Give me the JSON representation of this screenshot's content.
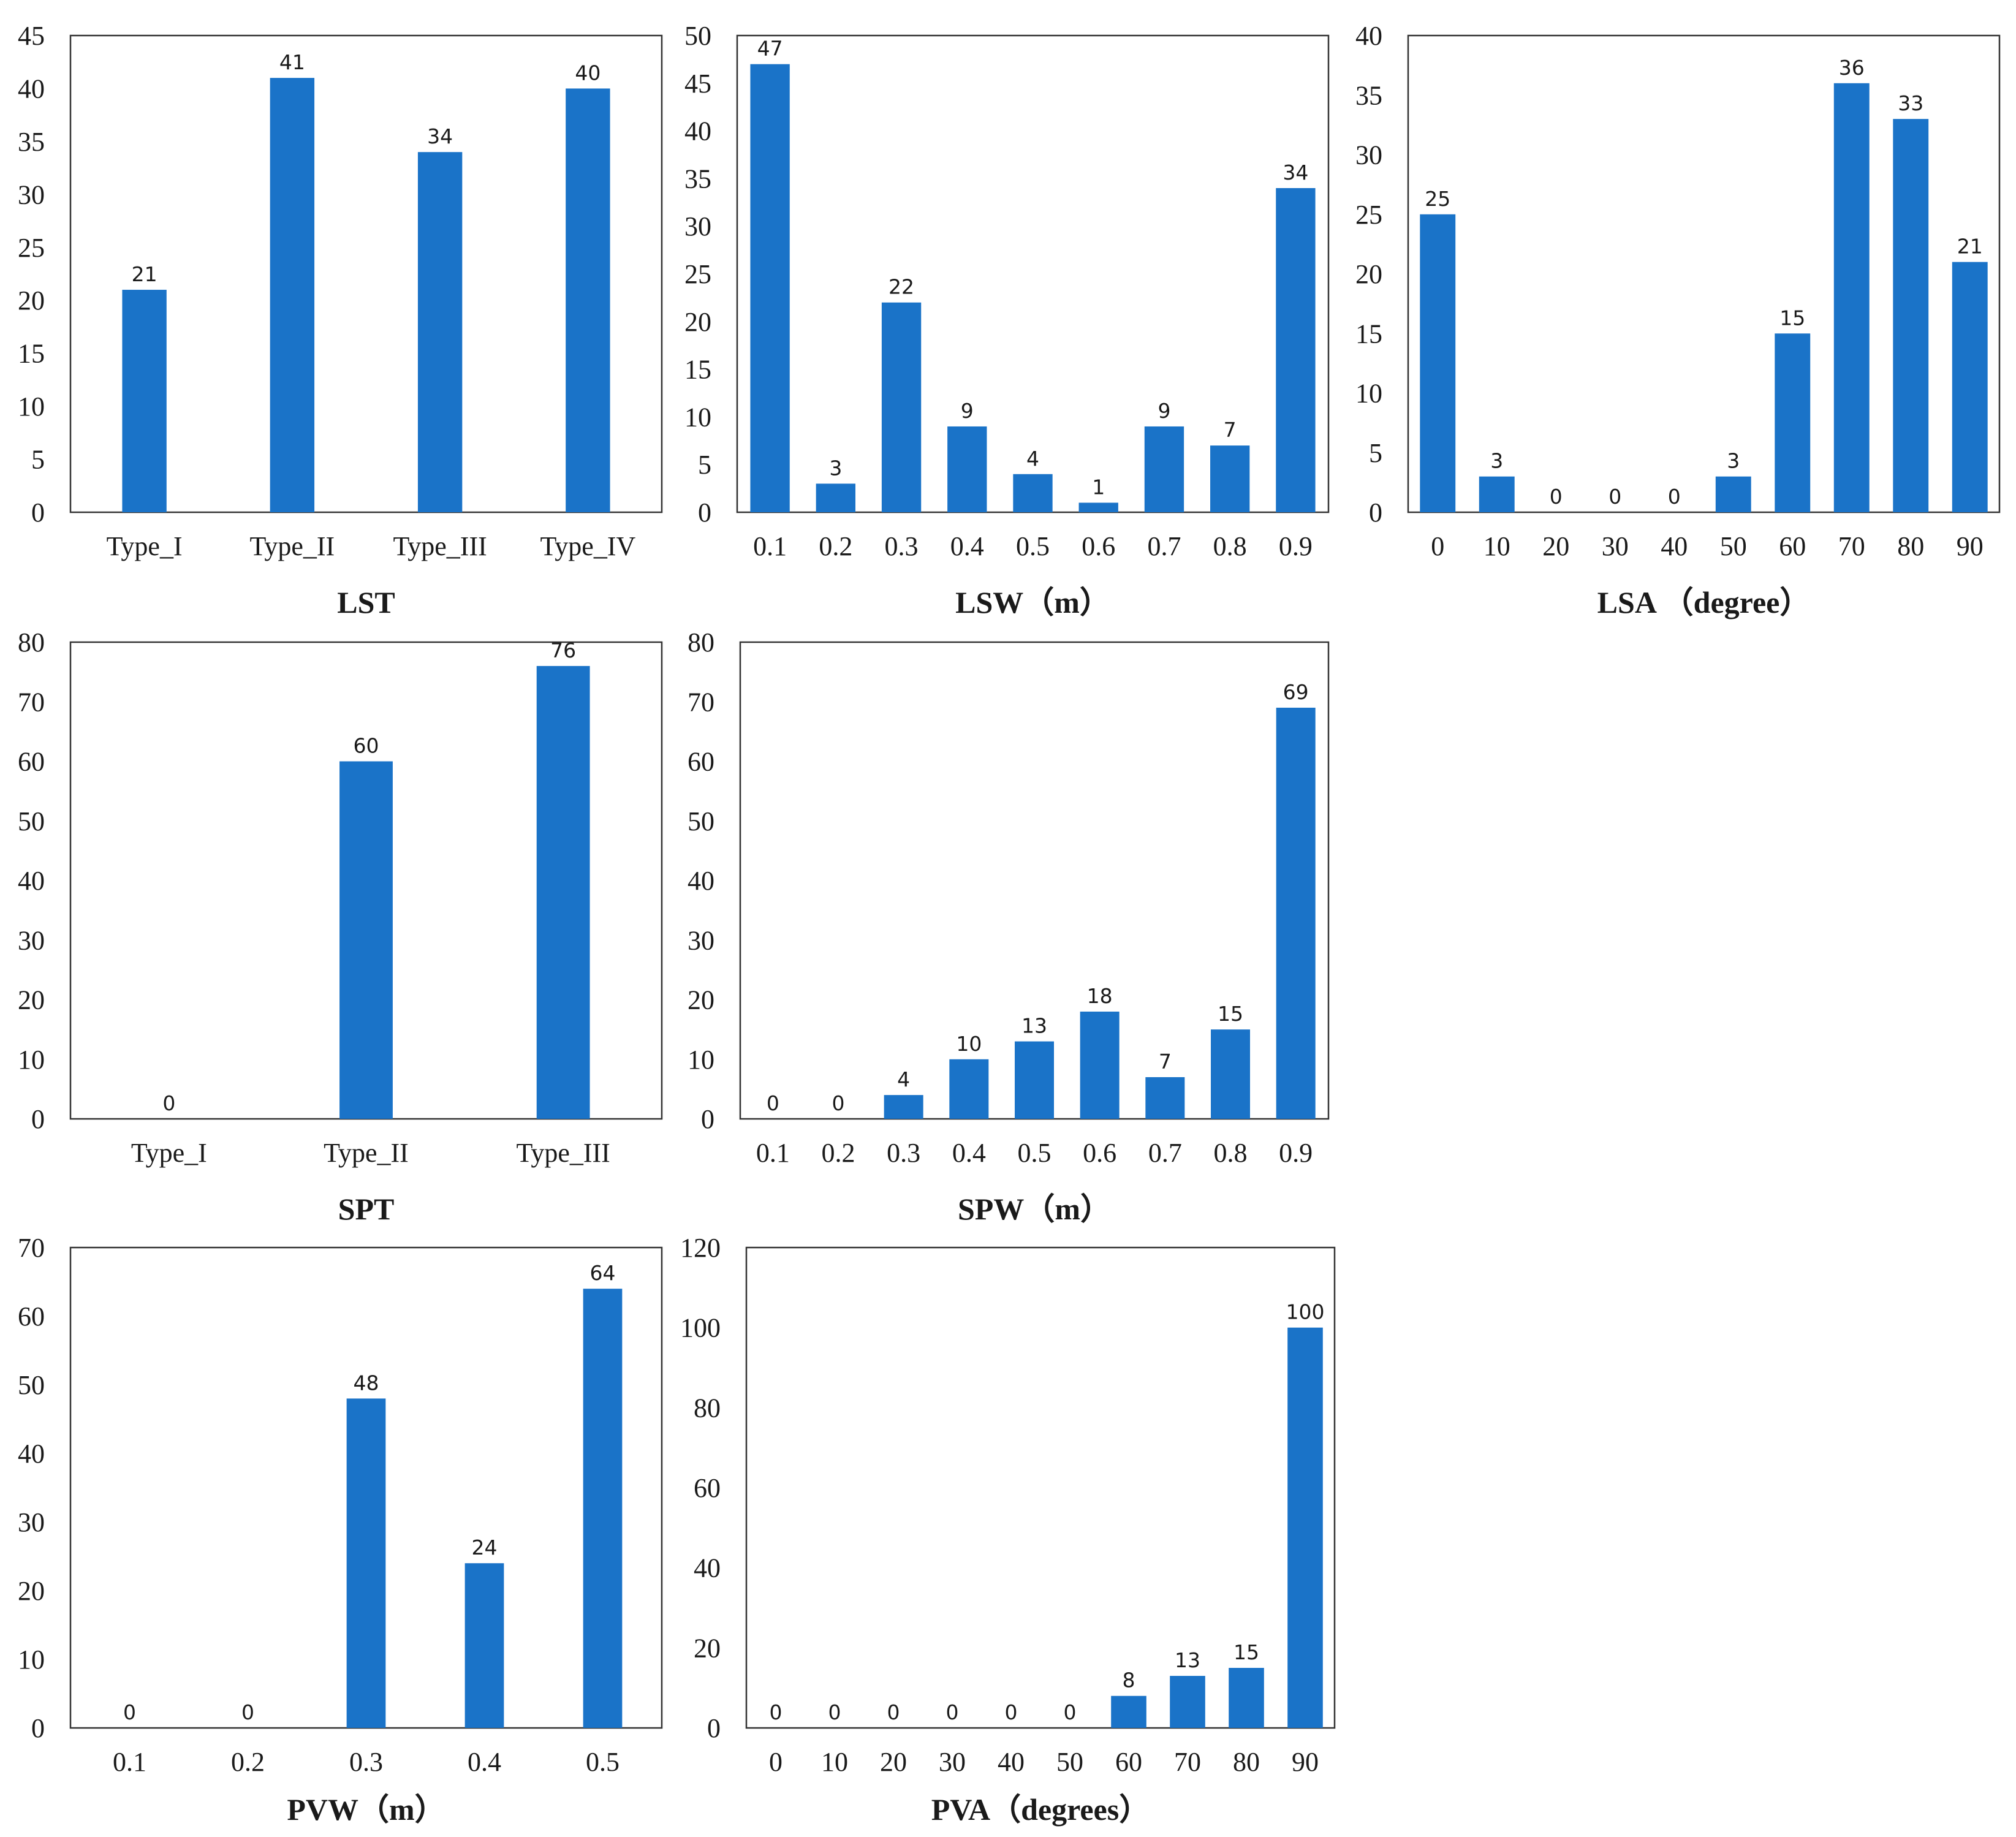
{
  "bar_color": "#1a73c8",
  "chart_data": [
    {
      "type": "bar",
      "title": "LST",
      "categories": [
        "Type_I",
        "Type_II",
        "Type_III",
        "Type_IV"
      ],
      "values": [
        21,
        41,
        34,
        40
      ],
      "ylim": [
        0,
        45
      ],
      "yticks": [
        0,
        5,
        10,
        15,
        20,
        25,
        30,
        35,
        40,
        45
      ],
      "xlabel": "LST",
      "ylabel": ""
    },
    {
      "type": "bar",
      "title": "LSW（m）",
      "categories": [
        "0.1",
        "0.2",
        "0.3",
        "0.4",
        "0.5",
        "0.6",
        "0.7",
        "0.8",
        "0.9"
      ],
      "values": [
        47,
        3,
        22,
        9,
        4,
        1,
        9,
        7,
        34
      ],
      "ylim": [
        0,
        50
      ],
      "yticks": [
        0,
        5,
        10,
        15,
        20,
        25,
        30,
        35,
        40,
        45,
        50
      ],
      "xlabel": "LSW（m）",
      "ylabel": ""
    },
    {
      "type": "bar",
      "title": "LSA （degree）",
      "categories": [
        "0",
        "10",
        "20",
        "30",
        "40",
        "50",
        "60",
        "70",
        "80",
        "90"
      ],
      "values": [
        25,
        3,
        0,
        0,
        0,
        3,
        15,
        36,
        33,
        21
      ],
      "ylim": [
        0,
        40
      ],
      "yticks": [
        0,
        5,
        10,
        15,
        20,
        25,
        30,
        35,
        40
      ],
      "xlabel": "LSA （degree）",
      "ylabel": ""
    },
    {
      "type": "bar",
      "title": "SPT",
      "categories": [
        "Type_I",
        "Type_II",
        "Type_III"
      ],
      "values": [
        0,
        60,
        76
      ],
      "ylim": [
        0,
        80
      ],
      "yticks": [
        0,
        10,
        20,
        30,
        40,
        50,
        60,
        70,
        80
      ],
      "xlabel": "SPT",
      "ylabel": ""
    },
    {
      "type": "bar",
      "title": "SPW（m）",
      "categories": [
        "0.1",
        "0.2",
        "0.3",
        "0.4",
        "0.5",
        "0.6",
        "0.7",
        "0.8",
        "0.9"
      ],
      "values": [
        0,
        0,
        4,
        10,
        13,
        18,
        7,
        15,
        69
      ],
      "ylim": [
        0,
        80
      ],
      "yticks": [
        0,
        10,
        20,
        30,
        40,
        50,
        60,
        70,
        80
      ],
      "xlabel": "SPW（m）",
      "ylabel": ""
    },
    {
      "type": "bar",
      "title": "PVW（m）",
      "categories": [
        "0.1",
        "0.2",
        "0.3",
        "0.4",
        "0.5"
      ],
      "values": [
        0,
        0,
        48,
        24,
        64
      ],
      "ylim": [
        0,
        70
      ],
      "yticks": [
        0,
        10,
        20,
        30,
        40,
        50,
        60,
        70
      ],
      "xlabel": "PVW（m）",
      "ylabel": ""
    },
    {
      "type": "bar",
      "title": "PVA（degrees）",
      "categories": [
        "0",
        "10",
        "20",
        "30",
        "40",
        "50",
        "60",
        "70",
        "80",
        "90"
      ],
      "values": [
        0,
        0,
        0,
        0,
        0,
        0,
        8,
        13,
        15,
        100
      ],
      "ylim": [
        0,
        120
      ],
      "yticks": [
        0,
        20,
        40,
        60,
        80,
        100,
        120
      ],
      "xlabel": "PVA（degrees）",
      "ylabel": ""
    }
  ]
}
